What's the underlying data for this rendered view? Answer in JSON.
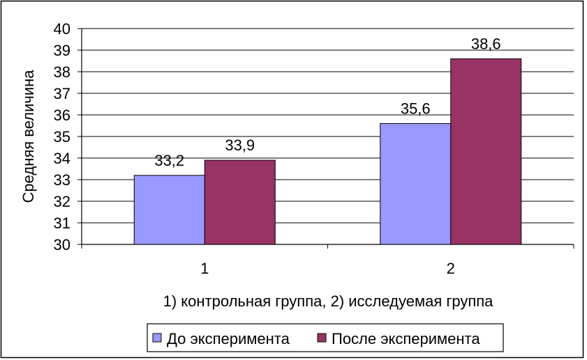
{
  "chart_data": {
    "type": "bar",
    "categories": [
      "1",
      "2"
    ],
    "series": [
      {
        "name": "До эксперимента",
        "values": [
          33.2,
          35.6
        ],
        "labels": [
          "33,2",
          "35,6"
        ],
        "color": "#9999ff"
      },
      {
        "name": "После эксперимента",
        "values": [
          33.9,
          38.6
        ],
        "labels": [
          "33,9",
          "38,6"
        ],
        "color": "#993366"
      }
    ],
    "title": "",
    "xlabel": "1) контрольная группа, 2) исследуемая группа",
    "ylabel": "Средняя величина",
    "ylim": [
      30,
      40
    ],
    "yticks": [
      30,
      31,
      32,
      33,
      34,
      35,
      36,
      37,
      38,
      39,
      40
    ],
    "grid": true,
    "legend_position": "bottom"
  }
}
